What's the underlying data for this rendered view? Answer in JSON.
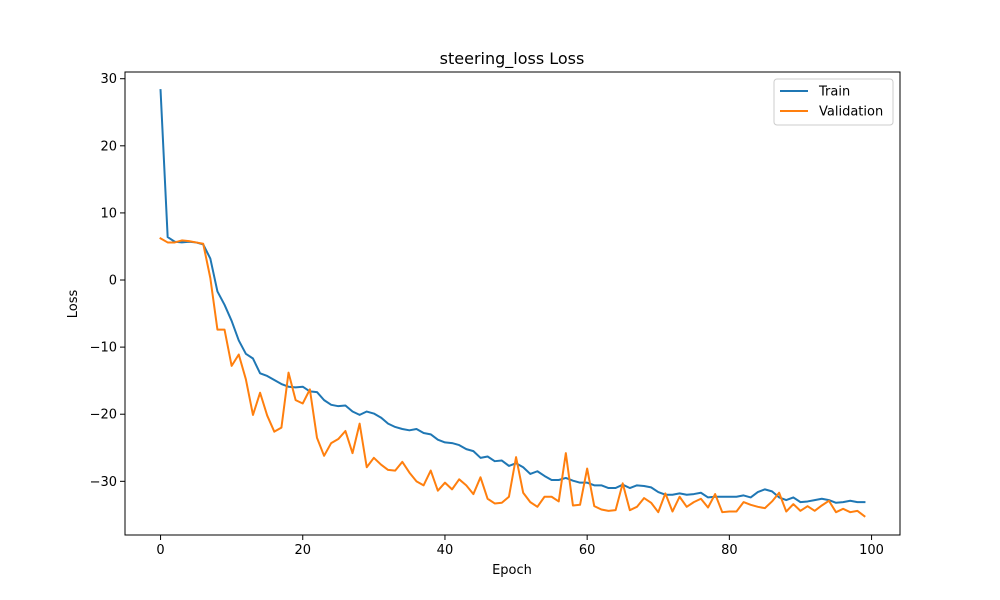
{
  "chart_data": {
    "type": "line",
    "title": "steering_loss Loss",
    "xlabel": "Epoch",
    "ylabel": "Loss",
    "xlim": [
      -5,
      104
    ],
    "ylim": [
      -38,
      31
    ],
    "xticks": [
      0,
      20,
      40,
      60,
      80,
      100
    ],
    "yticks": [
      30,
      20,
      10,
      0,
      -10,
      -20,
      -30
    ],
    "xtick_labels": [
      "0",
      "20",
      "40",
      "60",
      "80",
      "100"
    ],
    "ytick_labels": [
      "30",
      "20",
      "10",
      "0",
      "−10",
      "−20",
      "−30"
    ],
    "grid": false,
    "legend_position": "top-right",
    "x": [
      0,
      1,
      2,
      3,
      4,
      5,
      6,
      7,
      8,
      9,
      10,
      11,
      12,
      13,
      14,
      15,
      16,
      17,
      18,
      19,
      20,
      21,
      22,
      23,
      24,
      25,
      26,
      27,
      28,
      29,
      30,
      31,
      32,
      33,
      34,
      35,
      36,
      37,
      38,
      39,
      40,
      41,
      42,
      43,
      44,
      45,
      46,
      47,
      48,
      49,
      50,
      51,
      52,
      53,
      54,
      55,
      56,
      57,
      58,
      59,
      60,
      61,
      62,
      63,
      64,
      65,
      66,
      67,
      68,
      69,
      70,
      71,
      72,
      73,
      74,
      75,
      76,
      77,
      78,
      79,
      80,
      81,
      82,
      83,
      84,
      85,
      86,
      87,
      88,
      89,
      90,
      91,
      92,
      93,
      94,
      95,
      96,
      97,
      98,
      99
    ],
    "series": [
      {
        "name": "Train",
        "color": "#1f77b4",
        "values": [
          28.3,
          6.4,
          5.7,
          5.6,
          5.7,
          5.6,
          5.3,
          3.2,
          -1.7,
          -3.7,
          -6.1,
          -9.0,
          -11.0,
          -11.7,
          -13.9,
          -14.3,
          -14.9,
          -15.5,
          -15.9,
          -16.0,
          -15.9,
          -16.6,
          -16.7,
          -17.9,
          -18.6,
          -18.8,
          -18.7,
          -19.6,
          -20.1,
          -19.6,
          -19.9,
          -20.5,
          -21.4,
          -21.9,
          -22.2,
          -22.4,
          -22.2,
          -22.8,
          -23.0,
          -23.8,
          -24.2,
          -24.3,
          -24.6,
          -25.2,
          -25.5,
          -26.5,
          -26.3,
          -27.0,
          -26.9,
          -27.7,
          -27.3,
          -27.9,
          -28.9,
          -28.5,
          -29.2,
          -29.8,
          -29.8,
          -29.5,
          -29.9,
          -30.2,
          -30.2,
          -30.6,
          -30.6,
          -31.0,
          -31.0,
          -30.5,
          -31.0,
          -30.6,
          -30.7,
          -30.9,
          -31.6,
          -32.0,
          -32.0,
          -31.8,
          -32.0,
          -31.9,
          -31.7,
          -32.4,
          -32.3,
          -32.3,
          -32.3,
          -32.3,
          -32.1,
          -32.4,
          -31.6,
          -31.2,
          -31.5,
          -32.4,
          -32.8,
          -32.4,
          -33.1,
          -33.0,
          -32.8,
          -32.6,
          -32.8,
          -33.2,
          -33.1,
          -32.9,
          -33.1,
          -33.1
        ]
      },
      {
        "name": "Validation",
        "color": "#ff7f0e",
        "values": [
          6.2,
          5.6,
          5.6,
          5.9,
          5.8,
          5.6,
          5.4,
          0.3,
          -7.4,
          -7.4,
          -12.8,
          -11.1,
          -14.8,
          -20.1,
          -16.8,
          -20.2,
          -22.6,
          -22.0,
          -13.8,
          -17.9,
          -18.4,
          -16.3,
          -23.5,
          -26.2,
          -24.3,
          -23.7,
          -22.5,
          -25.8,
          -21.4,
          -27.9,
          -26.5,
          -27.5,
          -28.3,
          -28.4,
          -27.1,
          -28.7,
          -30.0,
          -30.6,
          -28.4,
          -31.4,
          -30.2,
          -31.2,
          -29.7,
          -30.6,
          -31.9,
          -29.4,
          -32.6,
          -33.3,
          -33.2,
          -32.3,
          -26.4,
          -31.7,
          -33.1,
          -33.8,
          -32.3,
          -32.3,
          -33.0,
          -25.8,
          -33.6,
          -33.5,
          -28.1,
          -33.7,
          -34.2,
          -34.4,
          -34.3,
          -30.3,
          -34.3,
          -33.8,
          -32.5,
          -33.2,
          -34.6,
          -31.8,
          -34.5,
          -32.3,
          -33.8,
          -33.1,
          -32.6,
          -33.9,
          -31.9,
          -34.6,
          -34.5,
          -34.5,
          -33.1,
          -33.5,
          -33.8,
          -34.0,
          -33.0,
          -31.7,
          -34.5,
          -33.4,
          -34.4,
          -33.7,
          -34.4,
          -33.6,
          -32.9,
          -34.6,
          -34.1,
          -34.6,
          -34.4,
          -35.2
        ]
      }
    ]
  }
}
